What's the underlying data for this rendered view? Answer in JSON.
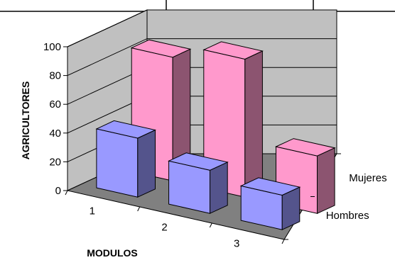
{
  "chart_data": {
    "type": "bar3d",
    "title": "",
    "xlabel": "MODULOS",
    "ylabel": "AGRICULTORES",
    "categories": [
      "1",
      "2",
      "3"
    ],
    "ylim": [
      0,
      100
    ],
    "yticks": [
      "0",
      "20",
      "40",
      "60",
      "80",
      "100"
    ],
    "series": [
      {
        "name": "Hombres",
        "values": [
          41,
          30,
          24
        ],
        "color": "#9999FF"
      },
      {
        "name": "Mujeres",
        "values": [
          86,
          96,
          40
        ],
        "color": "#FF99CC"
      }
    ],
    "grid": true,
    "wall_color": "#C0C0C0",
    "floor_color": "#808080"
  }
}
